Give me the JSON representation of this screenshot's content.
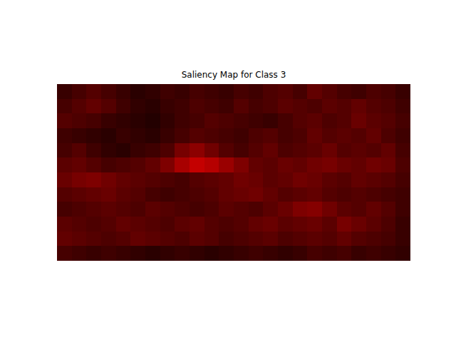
{
  "chart_data": {
    "type": "heatmap",
    "title": "Saliency Map for Class 3",
    "color": "hot",
    "tick_labels": false,
    "zlim": [
      0,
      1
    ],
    "values": [
      [
        0.08,
        0.1,
        0.12,
        0.1,
        0.08,
        0.06,
        0.07,
        0.09,
        0.08,
        0.1,
        0.09,
        0.08,
        0.1,
        0.09,
        0.11,
        0.12,
        0.1,
        0.14,
        0.12,
        0.1,
        0.09,
        0.11,
        0.1,
        0.08
      ],
      [
        0.1,
        0.12,
        0.14,
        0.12,
        0.09,
        0.07,
        0.06,
        0.08,
        0.09,
        0.11,
        0.1,
        0.09,
        0.12,
        0.1,
        0.11,
        0.13,
        0.12,
        0.11,
        0.13,
        0.12,
        0.14,
        0.12,
        0.11,
        0.09
      ],
      [
        0.12,
        0.11,
        0.1,
        0.08,
        0.07,
        0.06,
        0.05,
        0.07,
        0.09,
        0.1,
        0.12,
        0.11,
        0.1,
        0.09,
        0.08,
        0.1,
        0.12,
        0.13,
        0.11,
        0.12,
        0.15,
        0.13,
        0.12,
        0.1
      ],
      [
        0.09,
        0.08,
        0.07,
        0.06,
        0.08,
        0.07,
        0.06,
        0.08,
        0.1,
        0.12,
        0.11,
        0.1,
        0.09,
        0.11,
        0.12,
        0.1,
        0.11,
        0.14,
        0.12,
        0.13,
        0.12,
        0.14,
        0.11,
        0.09
      ],
      [
        0.1,
        0.12,
        0.09,
        0.07,
        0.06,
        0.08,
        0.09,
        0.11,
        0.17,
        0.2,
        0.16,
        0.12,
        0.1,
        0.12,
        0.14,
        0.11,
        0.12,
        0.13,
        0.15,
        0.12,
        0.13,
        0.12,
        0.14,
        0.1
      ],
      [
        0.13,
        0.14,
        0.12,
        0.1,
        0.11,
        0.12,
        0.14,
        0.18,
        0.24,
        0.28,
        0.26,
        0.22,
        0.18,
        0.14,
        0.13,
        0.15,
        0.14,
        0.16,
        0.17,
        0.15,
        0.14,
        0.16,
        0.15,
        0.11
      ],
      [
        0.15,
        0.17,
        0.18,
        0.16,
        0.14,
        0.13,
        0.12,
        0.11,
        0.1,
        0.12,
        0.13,
        0.14,
        0.16,
        0.15,
        0.13,
        0.14,
        0.16,
        0.15,
        0.13,
        0.12,
        0.14,
        0.13,
        0.12,
        0.1
      ],
      [
        0.12,
        0.13,
        0.14,
        0.15,
        0.13,
        0.12,
        0.1,
        0.09,
        0.1,
        0.11,
        0.12,
        0.14,
        0.15,
        0.16,
        0.14,
        0.12,
        0.13,
        0.14,
        0.12,
        0.11,
        0.12,
        0.11,
        0.1,
        0.09
      ],
      [
        0.1,
        0.11,
        0.12,
        0.13,
        0.12,
        0.11,
        0.13,
        0.12,
        0.11,
        0.1,
        0.11,
        0.13,
        0.12,
        0.11,
        0.13,
        0.15,
        0.18,
        0.19,
        0.16,
        0.13,
        0.12,
        0.14,
        0.12,
        0.09
      ],
      [
        0.13,
        0.12,
        0.11,
        0.12,
        0.14,
        0.13,
        0.12,
        0.11,
        0.13,
        0.14,
        0.12,
        0.11,
        0.12,
        0.14,
        0.15,
        0.13,
        0.14,
        0.15,
        0.13,
        0.17,
        0.15,
        0.13,
        0.11,
        0.08
      ],
      [
        0.14,
        0.13,
        0.12,
        0.11,
        0.12,
        0.14,
        0.13,
        0.12,
        0.11,
        0.13,
        0.12,
        0.1,
        0.11,
        0.12,
        0.13,
        0.11,
        0.12,
        0.13,
        0.12,
        0.14,
        0.12,
        0.11,
        0.1,
        0.08
      ],
      [
        0.1,
        0.09,
        0.08,
        0.09,
        0.08,
        0.07,
        0.06,
        0.07,
        0.08,
        0.07,
        0.06,
        0.07,
        0.08,
        0.09,
        0.08,
        0.07,
        0.08,
        0.1,
        0.09,
        0.1,
        0.08,
        0.09,
        0.08,
        0.07
      ]
    ]
  }
}
